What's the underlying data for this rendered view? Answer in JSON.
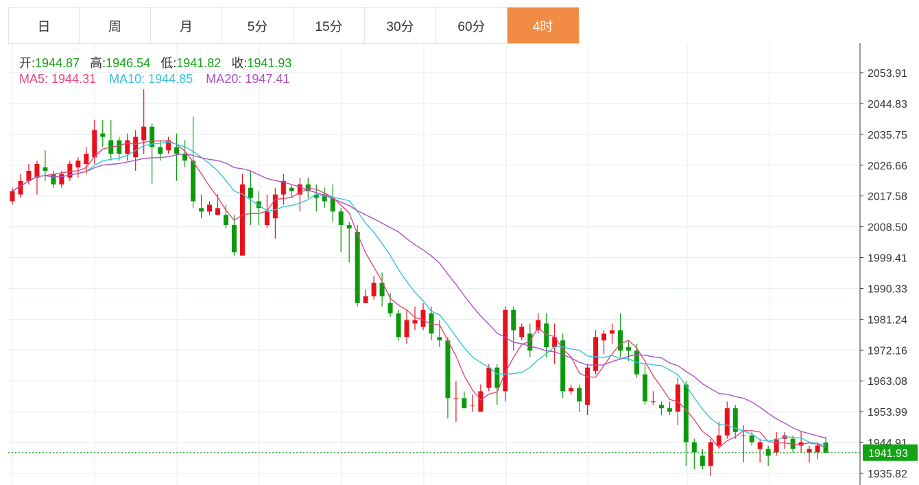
{
  "tabs": [
    {
      "label": "日",
      "active": false
    },
    {
      "label": "周",
      "active": false
    },
    {
      "label": "月",
      "active": false
    },
    {
      "label": "5分",
      "active": false
    },
    {
      "label": "15分",
      "active": false
    },
    {
      "label": "30分",
      "active": false
    },
    {
      "label": "60分",
      "active": false
    },
    {
      "label": "4时",
      "active": true
    }
  ],
  "ohlc": {
    "open_label": "开:",
    "open": "1944.87",
    "high_label": "高:",
    "high": "1946.54",
    "low_label": "低:",
    "low": "1941.82",
    "close_label": "收:",
    "close": "1941.93"
  },
  "ma_legend": [
    {
      "label": "MA5:",
      "value": "1944.31",
      "color": "#e8467c"
    },
    {
      "label": "MA10:",
      "value": "1944.85",
      "color": "#36c4d6"
    },
    {
      "label": "MA20:",
      "value": "1947.41",
      "color": "#b04fc4"
    }
  ],
  "colors": {
    "up": "#e8111b",
    "down": "#0c9a0c",
    "grid": "#e6ebef",
    "accent": "#f28c45"
  },
  "chart_data": {
    "type": "candlestick",
    "y_ticks": [
      "2053.91",
      "2044.83",
      "2035.75",
      "2026.66",
      "2017.58",
      "2008.50",
      "1999.41",
      "1990.33",
      "1981.24",
      "1972.16",
      "1963.08",
      "1953.99",
      "1944.91",
      "1935.82"
    ],
    "last_price": "1941.93",
    "ylim": [
      1932,
      2066
    ],
    "candles": [
      [
        2016,
        2019,
        2015,
        2020
      ],
      [
        2018,
        2022,
        2017,
        2024
      ],
      [
        2022,
        2025,
        2021,
        2027
      ],
      [
        2023,
        2027,
        2018,
        2028
      ],
      [
        2026,
        2025,
        2022,
        2031
      ],
      [
        2024,
        2021,
        2020,
        2025
      ],
      [
        2021,
        2024,
        2020,
        2025
      ],
      [
        2023,
        2027,
        2022,
        2028
      ],
      [
        2026,
        2028,
        2023,
        2029
      ],
      [
        2027,
        2030,
        2024,
        2032
      ],
      [
        2029,
        2037,
        2027,
        2040
      ],
      [
        2036,
        2035,
        2032,
        2040
      ],
      [
        2034,
        2030,
        2028,
        2040
      ],
      [
        2034,
        2030,
        2028,
        2035
      ],
      [
        2030,
        2034,
        2028,
        2036
      ],
      [
        2029,
        2035,
        2025,
        2037
      ],
      [
        2034,
        2038,
        2030,
        2049
      ],
      [
        2038,
        2032,
        2021,
        2039
      ],
      [
        2032,
        2030,
        2028,
        2034
      ],
      [
        2031,
        2034,
        2030,
        2035
      ],
      [
        2032,
        2030,
        2022,
        2036
      ],
      [
        2030,
        2028,
        2026,
        2034
      ],
      [
        2028,
        2016,
        2014,
        2041
      ],
      [
        2014,
        2013,
        2011,
        2018
      ],
      [
        2013,
        2015,
        2012,
        2016
      ],
      [
        2012,
        2014,
        2012,
        2018
      ],
      [
        2012,
        2009,
        2008,
        2015
      ],
      [
        2009,
        2001,
        2000,
        2012
      ],
      [
        2000,
        2021,
        2000,
        2024
      ],
      [
        2020,
        2017,
        2009,
        2025
      ],
      [
        2016,
        2014,
        2009,
        2019
      ],
      [
        2009,
        2013,
        2008,
        2018
      ],
      [
        2011,
        2018,
        2005,
        2020
      ],
      [
        2018,
        2022,
        2015,
        2024
      ],
      [
        2020,
        2019,
        2017,
        2021
      ],
      [
        2018,
        2021,
        2013,
        2023
      ],
      [
        2021,
        2019,
        2017,
        2023
      ],
      [
        2018,
        2017,
        2013,
        2021
      ],
      [
        2018,
        2016,
        2014,
        2020
      ],
      [
        2017,
        2013,
        2010,
        2021
      ],
      [
        2013,
        2009,
        2001,
        2014
      ],
      [
        2009,
        2008,
        1998,
        2010
      ],
      [
        2007,
        1986,
        1985,
        2009
      ],
      [
        1986,
        1988,
        1986,
        1990
      ],
      [
        1988,
        1992,
        1987,
        1994
      ],
      [
        1992,
        1988,
        1985,
        1995
      ],
      [
        1986,
        1983,
        1982,
        1989
      ],
      [
        1983,
        1976,
        1975,
        1984
      ],
      [
        1976,
        1981,
        1974,
        1984
      ],
      [
        1980,
        1981,
        1978,
        1985
      ],
      [
        1979,
        1984,
        1978,
        1986
      ],
      [
        1983,
        1977,
        1975,
        1985
      ],
      [
        1976,
        1975,
        1973,
        1981
      ],
      [
        1975,
        1958,
        1952,
        1976
      ],
      [
        1958,
        1958,
        1951,
        1963
      ],
      [
        1958,
        1955,
        1955,
        1960
      ],
      [
        1956,
        1956,
        1954,
        1959
      ],
      [
        1954,
        1960,
        1954,
        1962
      ],
      [
        1961,
        1967,
        1960,
        1968
      ],
      [
        1967,
        1961,
        1956,
        1968
      ],
      [
        1960,
        1984,
        1957,
        1985
      ],
      [
        1984,
        1978,
        1972,
        1985
      ],
      [
        1976,
        1979,
        1975,
        1980
      ],
      [
        1977,
        1972,
        1970,
        1980
      ],
      [
        1978,
        1981,
        1977,
        1983
      ],
      [
        1980,
        1973,
        1970,
        1983
      ],
      [
        1973,
        1976,
        1968,
        1980
      ],
      [
        1975,
        1960,
        1958,
        1977
      ],
      [
        1960,
        1961,
        1959,
        1962
      ],
      [
        1961,
        1957,
        1954,
        1962
      ],
      [
        1956,
        1967,
        1953,
        1968
      ],
      [
        1966,
        1976,
        1965,
        1978
      ],
      [
        1975,
        1977,
        1971,
        1978
      ],
      [
        1977,
        1978,
        1974,
        1980
      ],
      [
        1978,
        1972,
        1970,
        1983
      ],
      [
        1973,
        1972,
        1969,
        1975
      ],
      [
        1972,
        1965,
        1964,
        1974
      ],
      [
        1965,
        1957,
        1956,
        1968
      ],
      [
        1957,
        1957,
        1956,
        1960
      ],
      [
        1956,
        1955,
        1953,
        1957
      ],
      [
        1955,
        1954,
        1953,
        1957
      ],
      [
        1954,
        1962,
        1950,
        1964
      ],
      [
        1962,
        1945,
        1938,
        1963
      ],
      [
        1945,
        1942,
        1937,
        1946
      ],
      [
        1941,
        1938,
        1937,
        1943
      ],
      [
        1938,
        1945,
        1935,
        1946
      ],
      [
        1944,
        1947,
        1943,
        1951
      ],
      [
        1947,
        1955,
        1946,
        1957
      ],
      [
        1955,
        1948,
        1946,
        1956
      ],
      [
        1947,
        1947,
        1939,
        1950
      ],
      [
        1947,
        1945,
        1944,
        1948
      ],
      [
        1943,
        1945,
        1939,
        1946
      ],
      [
        1943,
        1941,
        1938,
        1944
      ],
      [
        1942,
        1946,
        1941,
        1948
      ],
      [
        1946,
        1947,
        1943,
        1948
      ],
      [
        1946,
        1943,
        1942,
        1947
      ],
      [
        1944,
        1945,
        1942,
        1948
      ],
      [
        1942,
        1943,
        1939,
        1944
      ],
      [
        1942,
        1944,
        1940,
        1945
      ],
      [
        1944.87,
        1941.93,
        1941.82,
        1946.54
      ]
    ]
  }
}
